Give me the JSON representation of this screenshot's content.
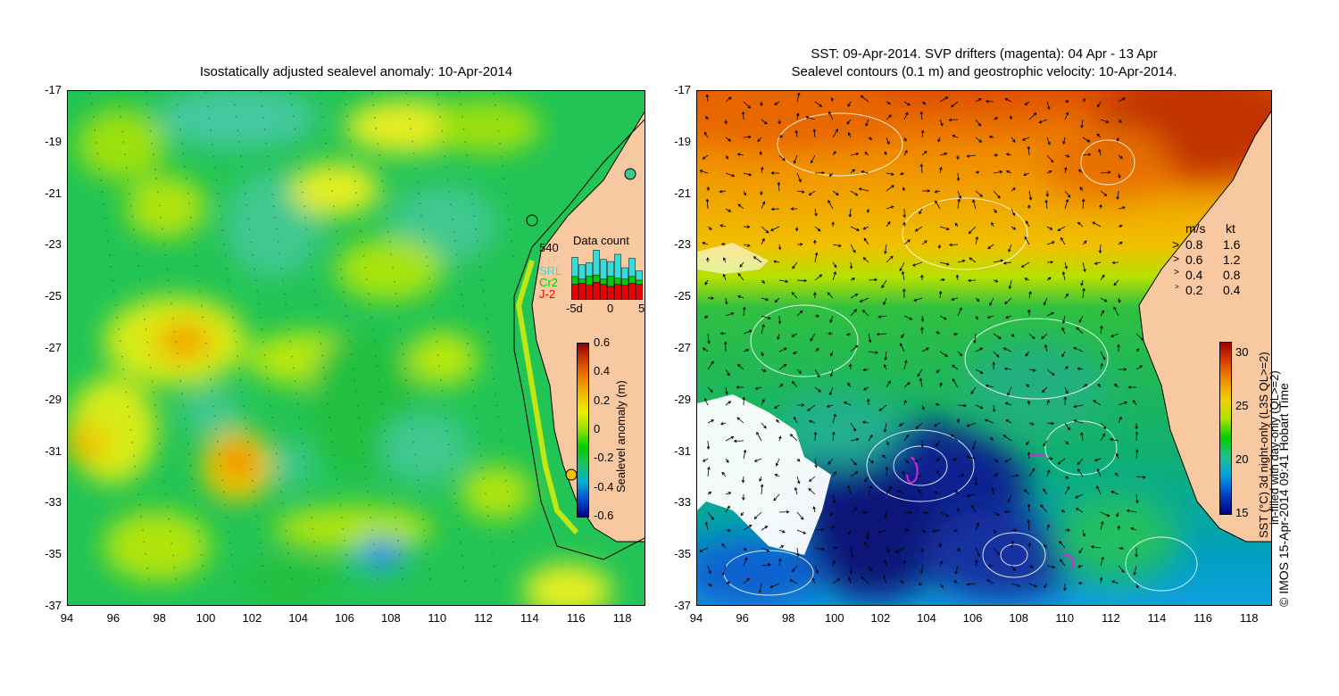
{
  "left_panel": {
    "title": "Isostatically adjusted sealevel anomaly: 10-Apr-2014",
    "colorbar": {
      "label": "Sealevel anomaly (m)",
      "ticks": [
        "0.6",
        "0.4",
        "0.2",
        "0",
        "-0.2",
        "-0.4",
        "-0.6"
      ],
      "range": [
        -0.6,
        0.6
      ]
    },
    "data_count": {
      "title": "Data count",
      "max_label": "540",
      "legend": [
        {
          "label": "SRL",
          "color": "#33dddd"
        },
        {
          "label": "Cr2",
          "color": "#00cc00"
        },
        {
          "label": "J-2",
          "color": "#ee0000"
        }
      ],
      "x_ticks": [
        "-5d",
        "0",
        "5"
      ],
      "bars": [
        {
          "j2": 0.3,
          "cr2": 0.45,
          "srl": 0.82
        },
        {
          "j2": 0.32,
          "cr2": 0.4,
          "srl": 0.68
        },
        {
          "j2": 0.28,
          "cr2": 0.46,
          "srl": 0.72
        },
        {
          "j2": 0.34,
          "cr2": 0.48,
          "srl": 0.96
        },
        {
          "j2": 0.3,
          "cr2": 0.4,
          "srl": 0.78
        },
        {
          "j2": 0.26,
          "cr2": 0.46,
          "srl": 0.74
        },
        {
          "j2": 0.3,
          "cr2": 0.42,
          "srl": 0.88
        },
        {
          "j2": 0.28,
          "cr2": 0.4,
          "srl": 0.62
        },
        {
          "j2": 0.32,
          "cr2": 0.45,
          "srl": 0.8
        },
        {
          "j2": 0.3,
          "cr2": 0.38,
          "srl": 0.56
        }
      ]
    }
  },
  "right_panel": {
    "title_line1": "SST: 09-Apr-2014. SVP drifters (magenta): 04 Apr - 13 Apr",
    "title_line2": "Sealevel contours (0.1 m) and geostrophic velocity: 10-Apr-2014.",
    "colorbar": {
      "label_line1": "SST (°C) 3d night-only (L3S QL>=2)",
      "label_line2": "in-filled with day-only (QL>=2)",
      "ticks": [
        "30",
        "25",
        "20",
        "15"
      ],
      "range": [
        15,
        31
      ]
    },
    "speed_legend": {
      "header_ms": "m/s",
      "header_kt": "kt",
      "rows": [
        {
          "ms": "0.8",
          "kt": "1.6"
        },
        {
          "ms": "0.6",
          "kt": "1.2"
        },
        {
          "ms": "0.4",
          "kt": "0.8"
        },
        {
          "ms": "0.2",
          "kt": "0.4"
        }
      ]
    }
  },
  "axes": {
    "y_ticks": [
      "-17",
      "-19",
      "-21",
      "-23",
      "-25",
      "-27",
      "-29",
      "-31",
      "-33",
      "-35",
      "-37"
    ],
    "x_ticks": [
      "94",
      "96",
      "98",
      "100",
      "102",
      "104",
      "106",
      "108",
      "110",
      "112",
      "114",
      "116",
      "118"
    ],
    "lat_range": [
      -37,
      -17
    ],
    "lon_range": [
      94,
      119
    ]
  },
  "credit": "© IMOS 15-Apr-2014 09:41 Hobart Time",
  "colors": {
    "land": "#f8c8a0",
    "sla_scale": [
      "#000080",
      "#0050d0",
      "#00b0d0",
      "#20c060",
      "#00cc00",
      "#90e000",
      "#e8f000",
      "#f0c000",
      "#f08000",
      "#d04000",
      "#900000"
    ],
    "sst_scale": [
      "#000080",
      "#0040c0",
      "#00a0e0",
      "#20c090",
      "#00cc00",
      "#b0e000",
      "#f0d000",
      "#f09000",
      "#e04000",
      "#a00000"
    ]
  }
}
